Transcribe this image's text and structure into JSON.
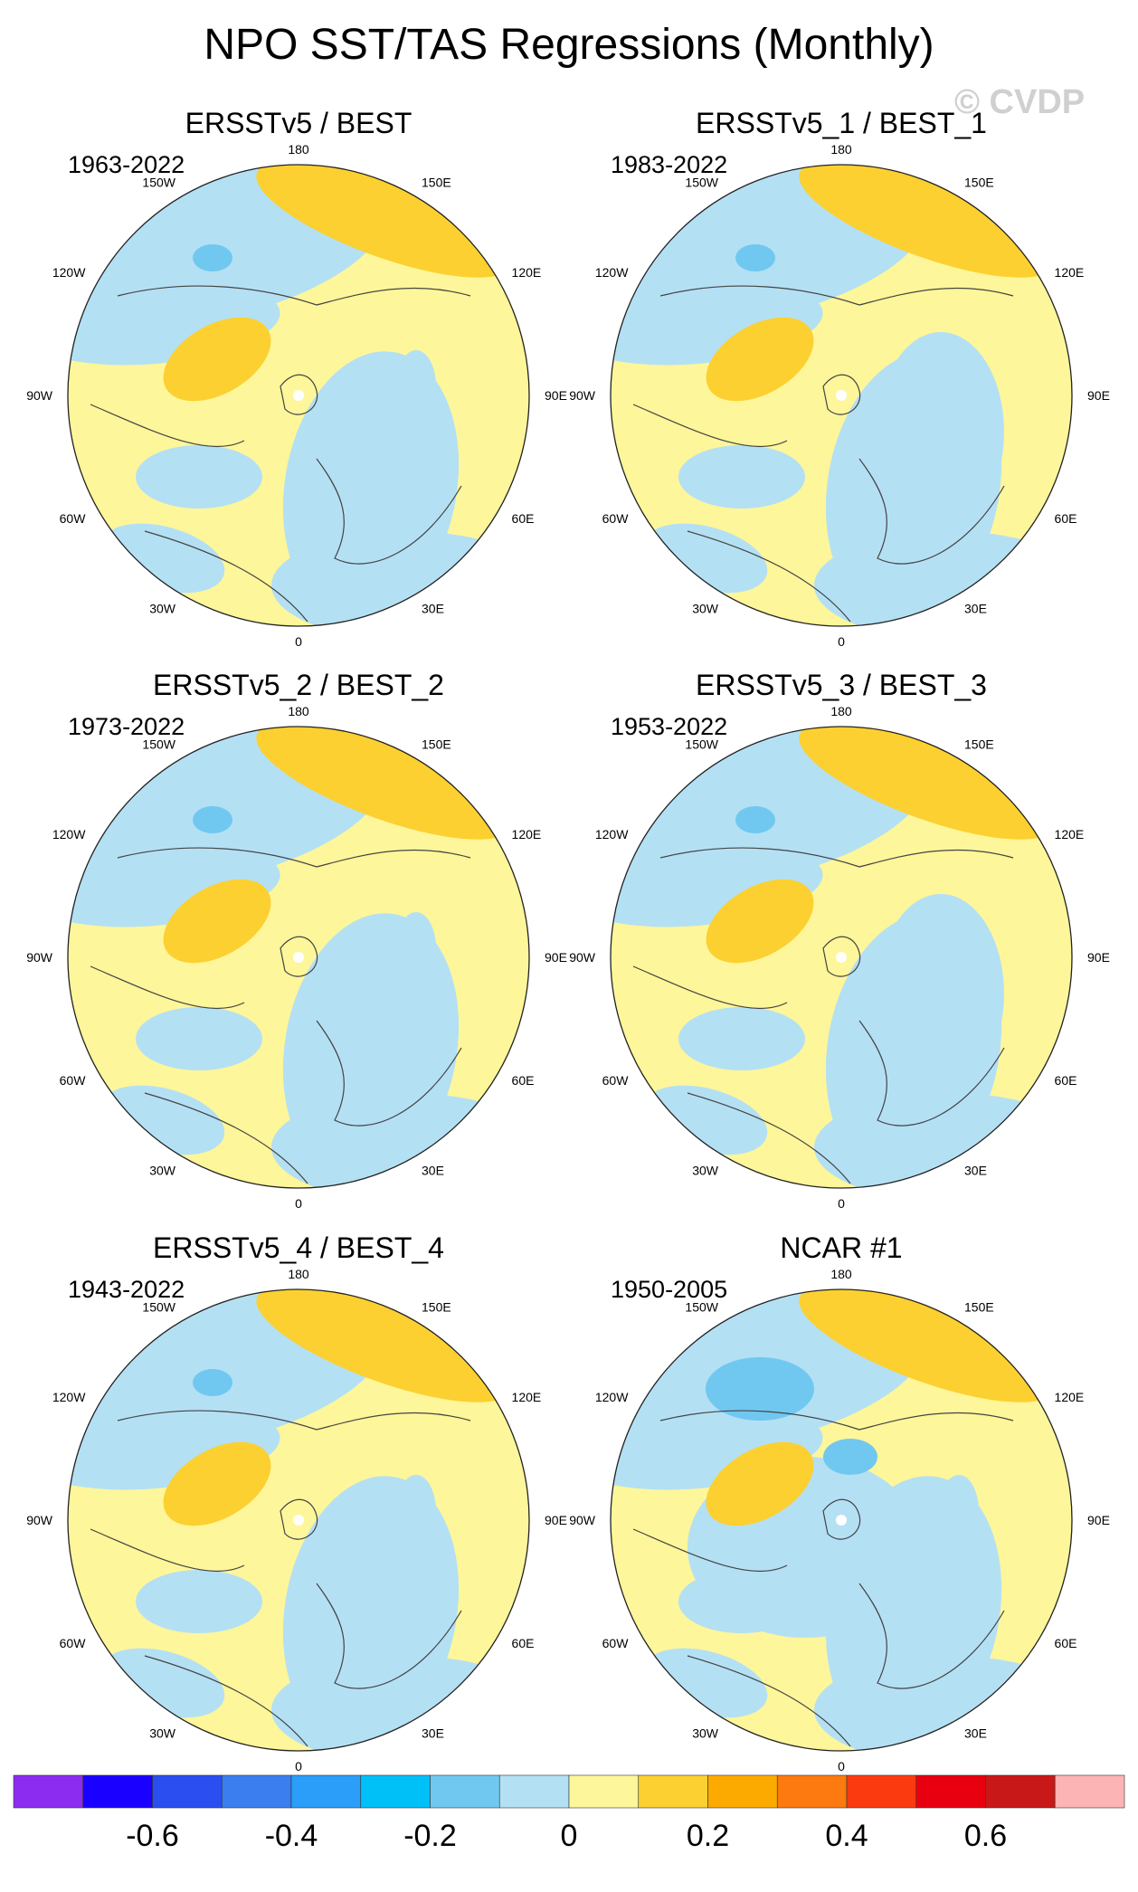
{
  "title": "NPO SST/TAS Regressions (Monthly)",
  "watermark": "© CVDP",
  "chart_data": {
    "type": "heatmap",
    "projection": "polar-stereographic (north)",
    "longitude_labels": [
      "180",
      "150E",
      "120E",
      "90E",
      "60E",
      "30E",
      "0",
      "30W",
      "60W",
      "90W",
      "120W",
      "150W"
    ],
    "panels": [
      {
        "title": "ERSSTv5 / BEST",
        "years": "1963-2022"
      },
      {
        "title": "ERSSTv5_1 / BEST_1",
        "years": "1983-2022"
      },
      {
        "title": "ERSSTv5_2 / BEST_2",
        "years": "1973-2022"
      },
      {
        "title": "ERSSTv5_3 / BEST_3",
        "years": "1953-2022"
      },
      {
        "title": "ERSSTv5_4 / BEST_4",
        "years": "1943-2022"
      },
      {
        "title": "NCAR #1",
        "years": "1950-2005"
      }
    ],
    "colorbar": {
      "colors": [
        "#8b2cf0",
        "#1a00ff",
        "#2a4ef0",
        "#3a7ef0",
        "#2a9ef8",
        "#00c0f8",
        "#70c8f0",
        "#b4e0f4",
        "#fef69a",
        "#fcd030",
        "#fcaa00",
        "#fc7a10",
        "#fc3a10",
        "#e80010",
        "#c81818",
        "#fcb4b4"
      ],
      "tick_labels": [
        "-0.6",
        "-0.4",
        "-0.2",
        "0",
        "0.2",
        "0.4",
        "0.6"
      ]
    }
  }
}
